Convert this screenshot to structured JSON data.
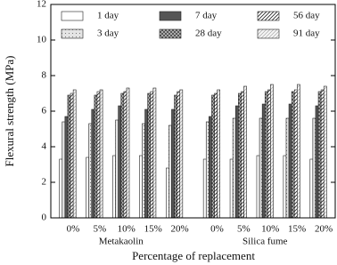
{
  "chart_data": {
    "type": "bar",
    "ylabel": "Flexural strength (MPa)",
    "xlabel": "Percentage of replacement",
    "categories": [
      "0%",
      "5%",
      "10%",
      "15%",
      "20%",
      "0%",
      "5%",
      "10%",
      "15%",
      "20%"
    ],
    "group_labels": [
      "Metakaolin",
      "Silica fume"
    ],
    "ylim": [
      0,
      12
    ],
    "yticks": [
      0,
      2,
      4,
      6,
      8,
      10,
      12
    ],
    "legend": "top",
    "series": [
      {
        "name": "1 day",
        "color": "#ffffff",
        "hatch": "none",
        "values": [
          3.3,
          3.4,
          3.5,
          3.5,
          2.8,
          3.3,
          3.3,
          3.5,
          3.5,
          3.3
        ]
      },
      {
        "name": "3 day",
        "color": "#e4e4e4",
        "hatch": "dots",
        "values": [
          5.4,
          5.3,
          5.5,
          5.3,
          5.2,
          5.4,
          5.6,
          5.6,
          5.6,
          5.6
        ]
      },
      {
        "name": "7 day",
        "color": "#555555",
        "hatch": "solid",
        "values": [
          5.7,
          6.1,
          6.3,
          6.1,
          6.1,
          5.7,
          6.3,
          6.4,
          6.4,
          6.3
        ]
      },
      {
        "name": "28 day",
        "color": "#bdbdbd",
        "hatch": "cross",
        "values": [
          6.9,
          6.9,
          7.0,
          7.0,
          6.9,
          6.9,
          7.0,
          7.1,
          7.1,
          7.1
        ]
      },
      {
        "name": "56 day",
        "color": "#ffffff",
        "hatch": "diag",
        "values": [
          7.0,
          7.1,
          7.1,
          7.1,
          7.1,
          7.0,
          7.1,
          7.2,
          7.2,
          7.2
        ]
      },
      {
        "name": "91 day",
        "color": "#f4f4f4",
        "hatch": "diag-light",
        "values": [
          7.2,
          7.2,
          7.3,
          7.3,
          7.2,
          7.2,
          7.4,
          7.5,
          7.5,
          7.4
        ]
      }
    ]
  }
}
